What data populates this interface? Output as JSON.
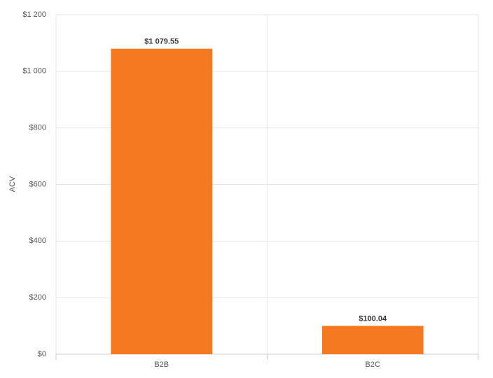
{
  "chart_data": {
    "type": "bar",
    "y_label": "ACV",
    "categories": [
      "B2B",
      "B2C"
    ],
    "values": [
      1079.55,
      100.04
    ],
    "value_labels": [
      "$1 079.55",
      "$100.04"
    ],
    "color": "#f47920",
    "ylim": [
      0,
      1200
    ],
    "yticks": [
      {
        "value": 0,
        "label": "$0"
      },
      {
        "value": 200,
        "label": "$200"
      },
      {
        "value": 400,
        "label": "$400"
      },
      {
        "value": 600,
        "label": "$600"
      },
      {
        "value": 800,
        "label": "$800"
      },
      {
        "value": 1000,
        "label": "$1 000"
      },
      {
        "value": 1200,
        "label": "$1 200"
      }
    ],
    "grid": true
  }
}
